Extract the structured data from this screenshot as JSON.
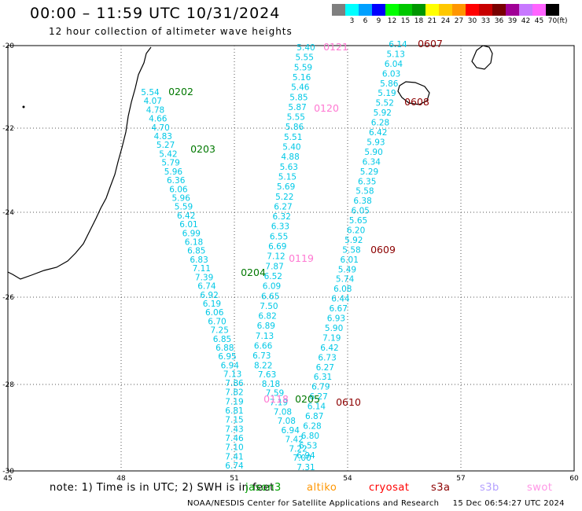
{
  "title": "00:00 – 11:59 UTC 10/31/2024",
  "subtitle": "12 hour collection of altimeter wave heights",
  "colorbar": {
    "labels": [
      "3",
      "6",
      "9",
      "12",
      "15",
      "18",
      "21",
      "24",
      "27",
      "30",
      "33",
      "36",
      "39",
      "42",
      "45",
      "70"
    ],
    "colors": [
      "#7f7f7f",
      "#00ffff",
      "#00a0ff",
      "#0000ff",
      "#00ff00",
      "#00c800",
      "#009600",
      "#ffff00",
      "#ffc800",
      "#ff9600",
      "#ff0000",
      "#c80000",
      "#780000",
      "#a00096",
      "#c878ff",
      "#ff64ff",
      "#000000"
    ],
    "unit": "(ft)"
  },
  "axes": {
    "lat_labels": [
      "-20",
      "-22",
      "-24",
      "-26",
      "-28",
      "-30"
    ],
    "lon_labels": [
      "45",
      "48",
      "51",
      "54",
      "57",
      "60"
    ]
  },
  "tracks": {
    "color": "#00c8e6",
    "track_a": [
      "5.54",
      "4.07",
      "4.78",
      "4.66",
      "4.70",
      "4.83",
      "5.27",
      "5.42",
      "5.79",
      "5.96",
      "6.36",
      "6.06",
      "5.96",
      "5.59",
      "6.42",
      "6.01",
      "6.99",
      "6.18",
      "6.85",
      "6.83",
      "7.11",
      "7.39",
      "6.74",
      "6.92",
      "6.19",
      "6.06",
      "6.70",
      "7.25",
      "6.85",
      "6.88",
      "6.95",
      "6.94",
      "7.13",
      "7.86",
      "7.82",
      "7.19",
      "6.81",
      "7.15",
      "7.43",
      "7.46",
      "7.10",
      "7.41",
      "6.74"
    ],
    "track_b": [
      "5.40",
      "5.55",
      "5.59",
      "5.16",
      "5.46",
      "5.85",
      "5.87",
      "5.55",
      "5.86",
      "5.51",
      "5.40",
      "4.88",
      "5.63",
      "5.15",
      "5.69",
      "5.22",
      "6.27",
      "6.32",
      "6.33",
      "6.55",
      "6.69",
      "7.12",
      "7.87",
      "6.52",
      "6.09",
      "6.65",
      "7.50",
      "6.82",
      "6.89",
      "7.13",
      "6.66",
      "6.73",
      "8.22",
      "7.63",
      "8.18",
      "7.59",
      "7.19",
      "7.08",
      "7.08",
      "6.94",
      "7.42",
      "7.22",
      "7.00",
      "7.31"
    ],
    "track_c": [
      "6.14",
      "5.13",
      "6.04",
      "6.03",
      "5.86",
      "5.19",
      "5.52",
      "5.92",
      "6.28",
      "6.42",
      "5.93",
      "5.90",
      "6.34",
      "5.29",
      "6.35",
      "5.58",
      "6.38",
      "6.05",
      "5.65",
      "6.20",
      "5.92",
      "5.58",
      "6.01",
      "5.49",
      "5.74",
      "6.08",
      "6.44",
      "6.67",
      "6.93",
      "5.90",
      "7.19",
      "6.42",
      "6.73",
      "6.27",
      "6.31",
      "6.79",
      "6.27",
      "6.14",
      "6.87",
      "6.28",
      "6.80",
      "6.53",
      "6.94"
    ]
  },
  "time_labels": [
    {
      "text": "0202",
      "color": "#007800"
    },
    {
      "text": "0203",
      "color": "#007800"
    },
    {
      "text": "0204",
      "color": "#007800"
    },
    {
      "text": "0205",
      "color": "#007800"
    },
    {
      "text": "0121",
      "color": "#ff78d2"
    },
    {
      "text": "0120",
      "color": "#ff78d2"
    },
    {
      "text": "0119",
      "color": "#ff78d2"
    },
    {
      "text": "0118",
      "color": "#ff78d2"
    },
    {
      "text": "0607",
      "color": "#8c0000"
    },
    {
      "text": "0608",
      "color": "#8c0000"
    },
    {
      "text": "0609",
      "color": "#8c0000"
    },
    {
      "text": "0610",
      "color": "#8c0000"
    }
  ],
  "note": "note: 1) Time is in UTC; 2) SWH is in feet",
  "satellites": [
    {
      "name": "jason3",
      "color": "#00a000"
    },
    {
      "name": "altiko",
      "color": "#ff9600"
    },
    {
      "name": "cryosat",
      "color": "#ff0000"
    },
    {
      "name": "s3a",
      "color": "#8c0000"
    },
    {
      "name": "s3b",
      "color": "#b4a0ff"
    },
    {
      "name": "swot",
      "color": "#ff96e6"
    }
  ],
  "footer": {
    "agency": "NOAA/NESDIS Center for Satellite Applications and Research",
    "timestamp": "15 Dec 06:54:27 UTC 2024"
  }
}
